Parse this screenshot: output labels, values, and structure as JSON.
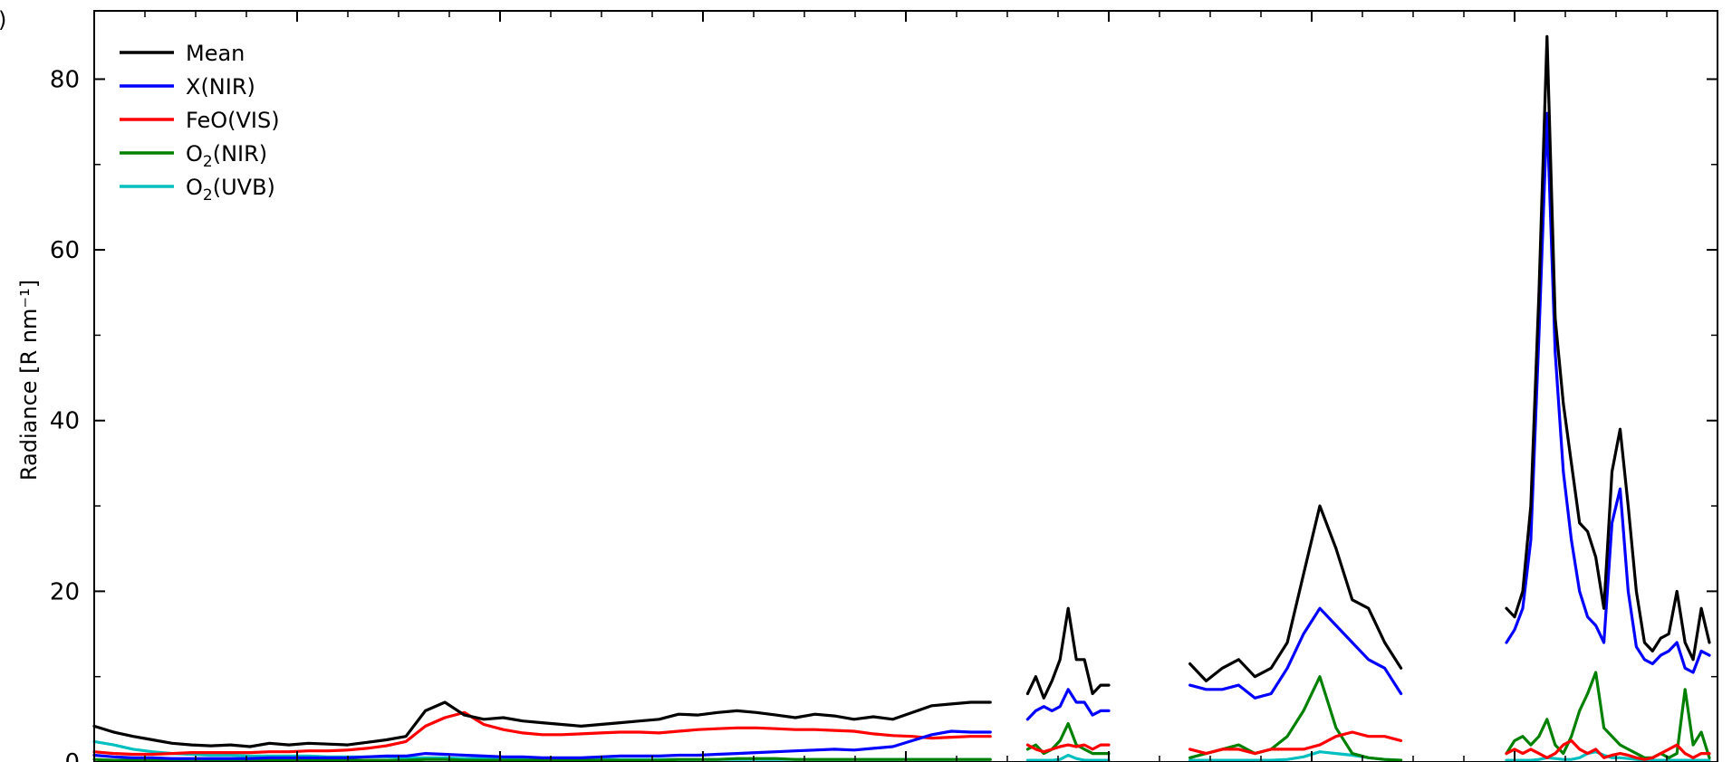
{
  "chart_data": {
    "type": "line",
    "ylabel": "Radiance [R nm⁻¹]",
    "ylim": [
      0,
      88
    ],
    "xlim": [
      0,
      100
    ],
    "yticks": [
      0,
      20,
      40,
      60,
      80
    ],
    "ytick_labels": [
      "0",
      "20",
      "40",
      "60",
      "80"
    ],
    "grid": false,
    "legend_position": "upper-left",
    "panel_letter": ")",
    "segments": [
      {
        "x": [
          0,
          1.2,
          2.4,
          3.6,
          4.8,
          6,
          7.2,
          8.4,
          9.6,
          10.8,
          12,
          13.2,
          14.4,
          15.6,
          16.8,
          18,
          19.2,
          20.4,
          21.6,
          22.8,
          24,
          25.2,
          26.4,
          27.6,
          28.8,
          30,
          31.2,
          32.4,
          33.6,
          34.8,
          36,
          37.2,
          38.4,
          39.6,
          40.8,
          42,
          43.2,
          44.4,
          45.6,
          46.8,
          48,
          49.2,
          50.4,
          51.6,
          52.8,
          54,
          55.2
        ],
        "series_values": [
          [
            4.2,
            3.5,
            3.0,
            2.6,
            2.2,
            2.0,
            1.9,
            2.0,
            1.8,
            2.2,
            2.0,
            2.2,
            2.1,
            2.0,
            2.3,
            2.6,
            3.0,
            6.0,
            7.0,
            5.5,
            5.0,
            5.2,
            4.8,
            4.6,
            4.4,
            4.2,
            4.4,
            4.6,
            4.8,
            5.0,
            5.6,
            5.5,
            5.8,
            6.0,
            5.8,
            5.5,
            5.2,
            5.6,
            5.4,
            5.0,
            5.3,
            5.0,
            5.8,
            6.6,
            6.8,
            7.0,
            7.0
          ],
          [
            0.8,
            0.6,
            0.5,
            0.5,
            0.4,
            0.4,
            0.4,
            0.4,
            0.4,
            0.5,
            0.5,
            0.5,
            0.5,
            0.5,
            0.6,
            0.7,
            0.7,
            1.0,
            0.9,
            0.8,
            0.7,
            0.6,
            0.6,
            0.5,
            0.5,
            0.5,
            0.6,
            0.7,
            0.7,
            0.7,
            0.8,
            0.8,
            0.9,
            1.0,
            1.1,
            1.2,
            1.3,
            1.4,
            1.5,
            1.4,
            1.6,
            1.8,
            2.5,
            3.2,
            3.6,
            3.5,
            3.5
          ],
          [
            1.2,
            1.0,
            0.9,
            0.9,
            1.0,
            1.1,
            1.1,
            1.1,
            1.1,
            1.2,
            1.2,
            1.3,
            1.3,
            1.4,
            1.6,
            1.9,
            2.4,
            4.2,
            5.2,
            5.8,
            4.4,
            3.8,
            3.4,
            3.2,
            3.2,
            3.3,
            3.4,
            3.5,
            3.5,
            3.4,
            3.6,
            3.8,
            3.9,
            4.0,
            4.0,
            3.9,
            3.8,
            3.8,
            3.7,
            3.6,
            3.3,
            3.1,
            3.0,
            2.8,
            2.9,
            3.0,
            3.0
          ],
          [
            0.3,
            0.2,
            0.2,
            0.2,
            0.2,
            0.2,
            0.2,
            0.2,
            0.2,
            0.2,
            0.2,
            0.2,
            0.2,
            0.2,
            0.2,
            0.2,
            0.2,
            0.3,
            0.3,
            0.2,
            0.2,
            0.2,
            0.2,
            0.2,
            0.2,
            0.2,
            0.2,
            0.2,
            0.2,
            0.2,
            0.3,
            0.3,
            0.3,
            0.4,
            0.4,
            0.4,
            0.3,
            0.3,
            0.3,
            0.3,
            0.3,
            0.3,
            0.3,
            0.3,
            0.3,
            0.3,
            0.3
          ],
          [
            2.4,
            2.0,
            1.5,
            1.2,
            1.0,
            0.9,
            0.8,
            0.8,
            0.7,
            0.7,
            0.7,
            0.7,
            0.6,
            0.6,
            0.6,
            0.6,
            0.5,
            0.5,
            0.5,
            0.4,
            0.4,
            0.4,
            0.4,
            0.3,
            0.3,
            0.3,
            0.3,
            0.3,
            0.3,
            0.3,
            0.3,
            0.3,
            0.3,
            0.3,
            0.3,
            0.3,
            0.3,
            0.3,
            0.3,
            0.3,
            0.3,
            0.3,
            0.3,
            0.3,
            0.3,
            0.3,
            0.3
          ]
        ]
      },
      {
        "x": [
          57.5,
          58.0,
          58.5,
          59.0,
          59.5,
          60.0,
          60.5,
          61.0,
          61.5,
          62.0,
          62.5
        ],
        "series_values": [
          [
            8.0,
            10.0,
            7.5,
            9.5,
            12.0,
            18.0,
            12.0,
            12.0,
            8.0,
            9.0,
            9.0
          ],
          [
            5.0,
            6.0,
            6.5,
            6.0,
            6.5,
            8.5,
            7.0,
            7.0,
            5.5,
            6.0,
            6.0
          ],
          [
            2.0,
            1.5,
            1.2,
            1.5,
            1.8,
            2.0,
            1.8,
            2.0,
            1.5,
            2.0,
            2.0
          ],
          [
            1.5,
            2.0,
            1.0,
            1.5,
            2.5,
            4.5,
            2.0,
            1.5,
            1.0,
            1.0,
            1.0
          ],
          [
            0.2,
            0.2,
            0.2,
            0.2,
            0.3,
            0.8,
            0.4,
            0.2,
            0.2,
            0.2,
            0.2
          ]
        ]
      },
      {
        "x": [
          67.5,
          68.5,
          69.5,
          70.5,
          71.5,
          72.5,
          73.5,
          74.5,
          75.5,
          76.5,
          77.5,
          78.5,
          79.5,
          80.5
        ],
        "series_values": [
          [
            11.5,
            9.5,
            11.0,
            12.0,
            10.0,
            11.0,
            14.0,
            22.0,
            30.0,
            25.0,
            19.0,
            18.0,
            14.0,
            11.0
          ],
          [
            9.0,
            8.5,
            8.5,
            9.0,
            7.5,
            8.0,
            11.0,
            15.0,
            18.0,
            16.0,
            14.0,
            12.0,
            11.0,
            8.0
          ],
          [
            1.5,
            1.0,
            1.5,
            1.5,
            1.0,
            1.5,
            1.5,
            1.5,
            2.0,
            3.0,
            3.5,
            3.0,
            3.0,
            2.5
          ],
          [
            0.5,
            1.0,
            1.5,
            2.0,
            1.0,
            1.5,
            3.0,
            6.0,
            10.0,
            4.0,
            1.0,
            0.5,
            0.3,
            0.2
          ],
          [
            0.2,
            0.2,
            0.2,
            0.2,
            0.2,
            0.2,
            0.3,
            0.6,
            1.2,
            1.0,
            0.8,
            0.5,
            0.3,
            0.2
          ]
        ]
      },
      {
        "x": [
          87.0,
          87.5,
          88.0,
          88.5,
          89.0,
          89.5,
          90.0,
          90.5,
          91.0,
          91.5,
          92.0,
          92.5,
          93.0,
          93.5,
          94.0,
          94.5,
          95.0,
          95.5,
          96.0,
          96.5,
          97.0,
          97.5,
          98.0,
          98.5,
          99.0,
          99.5
        ],
        "series_values": [
          [
            18.0,
            17.0,
            20.0,
            30.0,
            55.0,
            85.0,
            52.0,
            42.0,
            35.0,
            28.0,
            27.0,
            24.0,
            18.0,
            34.0,
            39.0,
            30.0,
            20.0,
            14.0,
            13.0,
            14.5,
            15.0,
            20.0,
            14.0,
            12.0,
            18.0,
            14.0
          ],
          [
            14.0,
            15.5,
            18.0,
            26.0,
            50.0,
            76.0,
            48.0,
            34.0,
            26.0,
            20.0,
            17.0,
            16.0,
            14.0,
            28.0,
            32.0,
            20.0,
            13.5,
            12.0,
            11.5,
            12.5,
            13.0,
            14.0,
            11.0,
            10.5,
            13.0,
            12.5
          ],
          [
            1.0,
            1.5,
            1.0,
            1.5,
            1.0,
            0.5,
            1.0,
            2.0,
            2.5,
            1.5,
            1.0,
            1.5,
            0.5,
            0.8,
            1.0,
            0.8,
            0.5,
            0.3,
            0.5,
            1.0,
            1.5,
            2.0,
            1.0,
            0.5,
            1.0,
            1.0
          ],
          [
            1.0,
            2.5,
            3.0,
            2.0,
            3.0,
            5.0,
            2.0,
            1.0,
            3.0,
            6.0,
            8.0,
            10.5,
            4.0,
            3.0,
            2.0,
            1.5,
            1.0,
            0.5,
            0.5,
            1.0,
            0.5,
            1.0,
            8.5,
            2.0,
            3.5,
            0.5
          ],
          [
            0.2,
            0.2,
            0.2,
            0.2,
            0.3,
            0.5,
            0.4,
            0.3,
            0.3,
            0.5,
            1.0,
            1.2,
            0.8,
            0.5,
            0.5,
            0.4,
            0.3,
            0.2,
            0.2,
            0.2,
            0.2,
            0.2,
            0.2,
            0.2,
            0.2,
            0.2
          ]
        ]
      }
    ],
    "series": [
      {
        "name": "Mean",
        "color": "#000000"
      },
      {
        "name": "X(NIR)",
        "color": "#0000ff"
      },
      {
        "name": "FeO(VIS)",
        "color": "#ff0000"
      },
      {
        "name": "O",
        "sub": "2",
        "suffix": "(NIR)",
        "color": "#008000"
      },
      {
        "name": "O",
        "sub": "2",
        "suffix": "(UVB)",
        "color": "#00bfbf"
      }
    ]
  }
}
